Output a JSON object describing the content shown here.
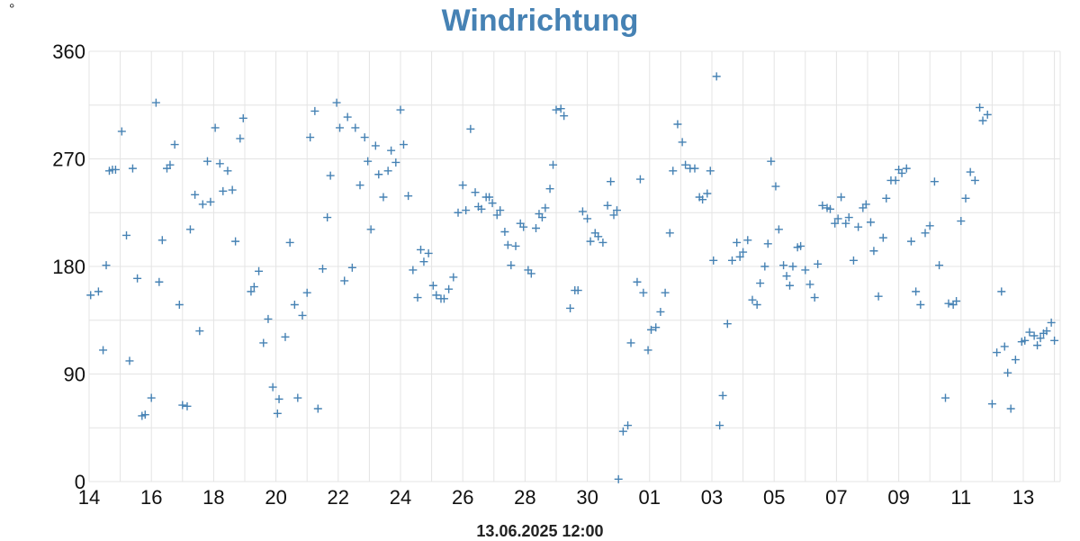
{
  "chart_data": {
    "type": "scatter",
    "title": "Windrichtung",
    "y_unit_label": "°",
    "footer": "13.06.2025 12:00",
    "ylim": [
      0,
      360
    ],
    "y_ticks": [
      0,
      90,
      180,
      270,
      360
    ],
    "x_range_days": [
      0,
      30.7
    ],
    "x_ticks": [
      {
        "label": "14",
        "day": 0
      },
      {
        "label": "16",
        "day": 2
      },
      {
        "label": "18",
        "day": 4
      },
      {
        "label": "20",
        "day": 6
      },
      {
        "label": "22",
        "day": 8
      },
      {
        "label": "24",
        "day": 10
      },
      {
        "label": "26",
        "day": 12
      },
      {
        "label": "28",
        "day": 14
      },
      {
        "label": "30",
        "day": 16
      },
      {
        "label": "01",
        "day": 18
      },
      {
        "label": "03",
        "day": 20
      },
      {
        "label": "05",
        "day": 22
      },
      {
        "label": "07",
        "day": 24
      },
      {
        "label": "09",
        "day": 26
      },
      {
        "label": "11",
        "day": 28
      },
      {
        "label": "13",
        "day": 30
      }
    ],
    "grid": true,
    "marker": "plus",
    "series_color": "#4682b4",
    "series": [
      {
        "points": [
          [
            0.05,
            156
          ],
          [
            0.3,
            159
          ],
          [
            0.45,
            110
          ],
          [
            0.55,
            181
          ],
          [
            0.65,
            260
          ],
          [
            0.75,
            261
          ],
          [
            0.85,
            261
          ],
          [
            1.05,
            293
          ],
          [
            1.2,
            206
          ],
          [
            1.3,
            101
          ],
          [
            1.4,
            262
          ],
          [
            1.55,
            170
          ],
          [
            1.7,
            55
          ],
          [
            1.8,
            56
          ],
          [
            2.0,
            70
          ],
          [
            2.15,
            317
          ],
          [
            2.25,
            167
          ],
          [
            2.35,
            202
          ],
          [
            2.5,
            262
          ],
          [
            2.6,
            265
          ],
          [
            2.75,
            282
          ],
          [
            2.9,
            148
          ],
          [
            3.0,
            64
          ],
          [
            3.15,
            63
          ],
          [
            3.25,
            211
          ],
          [
            3.4,
            240
          ],
          [
            3.55,
            126
          ],
          [
            3.65,
            232
          ],
          [
            3.8,
            268
          ],
          [
            3.9,
            234
          ],
          [
            4.05,
            296
          ],
          [
            4.2,
            266
          ],
          [
            4.3,
            243
          ],
          [
            4.45,
            260
          ],
          [
            4.6,
            244
          ],
          [
            4.7,
            201
          ],
          [
            4.85,
            287
          ],
          [
            4.95,
            304
          ],
          [
            5.2,
            159
          ],
          [
            5.3,
            163
          ],
          [
            5.45,
            176
          ],
          [
            5.6,
            116
          ],
          [
            5.75,
            136
          ],
          [
            5.9,
            79
          ],
          [
            6.05,
            57
          ],
          [
            6.1,
            69
          ],
          [
            6.3,
            121
          ],
          [
            6.45,
            200
          ],
          [
            6.6,
            148
          ],
          [
            6.7,
            70
          ],
          [
            6.85,
            139
          ],
          [
            7.0,
            158
          ],
          [
            7.1,
            288
          ],
          [
            7.25,
            310
          ],
          [
            7.35,
            61
          ],
          [
            7.5,
            178
          ],
          [
            7.65,
            221
          ],
          [
            7.75,
            256
          ],
          [
            7.95,
            317
          ],
          [
            8.05,
            296
          ],
          [
            8.2,
            168
          ],
          [
            8.3,
            305
          ],
          [
            8.45,
            179
          ],
          [
            8.55,
            296
          ],
          [
            8.7,
            248
          ],
          [
            8.85,
            288
          ],
          [
            8.95,
            268
          ],
          [
            9.05,
            211
          ],
          [
            9.2,
            281
          ],
          [
            9.3,
            257
          ],
          [
            9.45,
            238
          ],
          [
            9.6,
            260
          ],
          [
            9.7,
            277
          ],
          [
            9.85,
            267
          ],
          [
            10.0,
            311
          ],
          [
            10.1,
            282
          ],
          [
            10.25,
            239
          ],
          [
            10.4,
            177
          ],
          [
            10.55,
            154
          ],
          [
            10.65,
            194
          ],
          [
            10.75,
            184
          ],
          [
            10.9,
            191
          ],
          [
            11.05,
            164
          ],
          [
            11.15,
            156
          ],
          [
            11.3,
            153
          ],
          [
            11.4,
            153
          ],
          [
            11.55,
            161
          ],
          [
            11.7,
            171
          ],
          [
            11.85,
            225
          ],
          [
            12.0,
            248
          ],
          [
            12.1,
            227
          ],
          [
            12.25,
            295
          ],
          [
            12.4,
            242
          ],
          [
            12.5,
            230
          ],
          [
            12.6,
            228
          ],
          [
            12.75,
            238
          ],
          [
            12.85,
            238
          ],
          [
            12.95,
            233
          ],
          [
            13.1,
            223
          ],
          [
            13.2,
            227
          ],
          [
            13.35,
            209
          ],
          [
            13.45,
            198
          ],
          [
            13.55,
            181
          ],
          [
            13.7,
            197
          ],
          [
            13.85,
            216
          ],
          [
            13.95,
            213
          ],
          [
            14.1,
            177
          ],
          [
            14.2,
            174
          ],
          [
            14.35,
            212
          ],
          [
            14.45,
            224
          ],
          [
            14.55,
            221
          ],
          [
            14.65,
            229
          ],
          [
            14.8,
            245
          ],
          [
            14.9,
            265
          ],
          [
            15.0,
            311
          ],
          [
            15.15,
            312
          ],
          [
            15.25,
            306
          ],
          [
            15.45,
            145
          ],
          [
            15.6,
            160
          ],
          [
            15.7,
            160
          ],
          [
            15.85,
            226
          ],
          [
            16.0,
            220
          ],
          [
            16.1,
            201
          ],
          [
            16.25,
            208
          ],
          [
            16.35,
            205
          ],
          [
            16.5,
            200
          ],
          [
            16.65,
            231
          ],
          [
            16.75,
            251
          ],
          [
            16.85,
            223
          ],
          [
            16.95,
            227
          ],
          [
            17.0,
            2
          ],
          [
            17.15,
            42
          ],
          [
            17.3,
            47
          ],
          [
            17.4,
            116
          ],
          [
            17.6,
            167
          ],
          [
            17.7,
            253
          ],
          [
            17.8,
            158
          ],
          [
            17.95,
            110
          ],
          [
            18.05,
            127
          ],
          [
            18.2,
            129
          ],
          [
            18.35,
            142
          ],
          [
            18.5,
            158
          ],
          [
            18.65,
            208
          ],
          [
            18.75,
            260
          ],
          [
            18.9,
            299
          ],
          [
            19.05,
            284
          ],
          [
            19.15,
            265
          ],
          [
            19.3,
            262
          ],
          [
            19.45,
            262
          ],
          [
            19.6,
            238
          ],
          [
            19.7,
            236
          ],
          [
            19.85,
            241
          ],
          [
            19.95,
            260
          ],
          [
            20.05,
            185
          ],
          [
            20.15,
            339
          ],
          [
            20.25,
            47
          ],
          [
            20.35,
            72
          ],
          [
            20.5,
            132
          ],
          [
            20.65,
            185
          ],
          [
            20.8,
            200
          ],
          [
            20.9,
            188
          ],
          [
            21.0,
            192
          ],
          [
            21.15,
            202
          ],
          [
            21.3,
            152
          ],
          [
            21.45,
            148
          ],
          [
            21.55,
            166
          ],
          [
            21.7,
            180
          ],
          [
            21.8,
            199
          ],
          [
            21.9,
            268
          ],
          [
            22.05,
            247
          ],
          [
            22.15,
            211
          ],
          [
            22.3,
            181
          ],
          [
            22.4,
            172
          ],
          [
            22.5,
            164
          ],
          [
            22.6,
            180
          ],
          [
            22.75,
            196
          ],
          [
            22.85,
            197
          ],
          [
            23.0,
            177
          ],
          [
            23.15,
            165
          ],
          [
            23.3,
            154
          ],
          [
            23.4,
            182
          ],
          [
            23.55,
            231
          ],
          [
            23.7,
            229
          ],
          [
            23.8,
            228
          ],
          [
            23.95,
            216
          ],
          [
            24.05,
            220
          ],
          [
            24.15,
            238
          ],
          [
            24.3,
            216
          ],
          [
            24.4,
            221
          ],
          [
            24.55,
            185
          ],
          [
            24.7,
            213
          ],
          [
            24.85,
            229
          ],
          [
            24.95,
            232
          ],
          [
            25.1,
            217
          ],
          [
            25.2,
            193
          ],
          [
            25.35,
            155
          ],
          [
            25.5,
            204
          ],
          [
            25.6,
            237
          ],
          [
            25.75,
            252
          ],
          [
            25.9,
            252
          ],
          [
            26.0,
            261
          ],
          [
            26.1,
            258
          ],
          [
            26.25,
            262
          ],
          [
            26.4,
            201
          ],
          [
            26.55,
            159
          ],
          [
            26.7,
            148
          ],
          [
            26.85,
            208
          ],
          [
            27.0,
            214
          ],
          [
            27.15,
            251
          ],
          [
            27.3,
            181
          ],
          [
            27.5,
            70
          ],
          [
            27.6,
            149
          ],
          [
            27.75,
            148
          ],
          [
            27.85,
            151
          ],
          [
            28.0,
            218
          ],
          [
            28.15,
            237
          ],
          [
            28.3,
            259
          ],
          [
            28.45,
            252
          ],
          [
            28.6,
            313
          ],
          [
            28.7,
            302
          ],
          [
            28.85,
            307
          ],
          [
            29.0,
            65
          ],
          [
            29.15,
            108
          ],
          [
            29.3,
            159
          ],
          [
            29.4,
            113
          ],
          [
            29.5,
            91
          ],
          [
            29.6,
            61
          ],
          [
            29.75,
            102
          ],
          [
            29.95,
            117
          ],
          [
            30.05,
            118
          ],
          [
            30.2,
            125
          ],
          [
            30.35,
            122
          ],
          [
            30.45,
            114
          ],
          [
            30.55,
            120
          ],
          [
            30.65,
            124
          ],
          [
            30.75,
            126
          ],
          [
            30.9,
            133
          ],
          [
            31.0,
            118
          ]
        ]
      }
    ]
  }
}
